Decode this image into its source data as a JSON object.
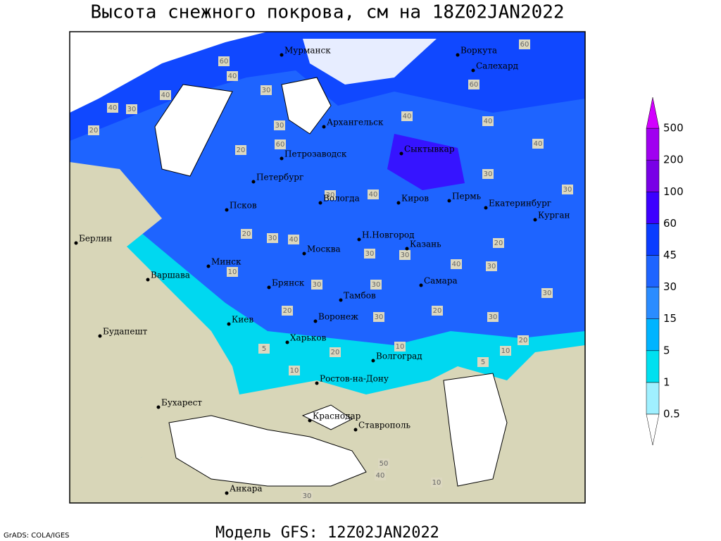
{
  "title": "Высота снежного покрова, см на 18Z02JAN2022",
  "footer": "Модель GFS: 12Z02JAN2022",
  "credit": "GrADS: COLA/IGES",
  "cities": [
    "Мурманск",
    "Воркута",
    "Салехард",
    "Архангельск",
    "Петрозаводск",
    "Сыктывкар",
    "Петербург",
    "Вологда",
    "Киров",
    "Пермь",
    "Екатеринбург",
    "Курган",
    "Псков",
    "Н.Новгород",
    "Казань",
    "Москва",
    "Минск",
    "Берлин",
    "Варшава",
    "Брянск",
    "Тамбов",
    "Самара",
    "Воронеж",
    "Киев",
    "Харьков",
    "Будапешт",
    "Волгоград",
    "Ростов-на-Дону",
    "Бухарест",
    "Краснодар",
    "Ставрополь",
    "Анкара"
  ],
  "colorbar": {
    "levels": [
      0.5,
      1,
      5,
      15,
      30,
      45,
      60,
      100,
      200,
      500
    ],
    "colors": [
      "#ffffff",
      "#a0f0ff",
      "#00e0f0",
      "#00b4ff",
      "#2a8cff",
      "#1e64ff",
      "#0a3cff",
      "#3c00ff",
      "#7800e6",
      "#a000f0",
      "#d200ff"
    ]
  },
  "contour_labels": [
    60,
    40,
    40,
    40,
    30,
    20,
    30,
    20,
    60,
    30,
    40,
    40,
    60,
    60,
    40,
    30,
    30,
    30,
    40,
    20,
    30,
    40,
    30,
    30,
    40,
    30,
    20,
    10,
    30,
    30,
    30,
    20,
    30,
    20,
    30,
    20,
    10,
    5,
    10,
    20,
    5,
    10,
    40,
    50,
    10,
    30
  ]
}
